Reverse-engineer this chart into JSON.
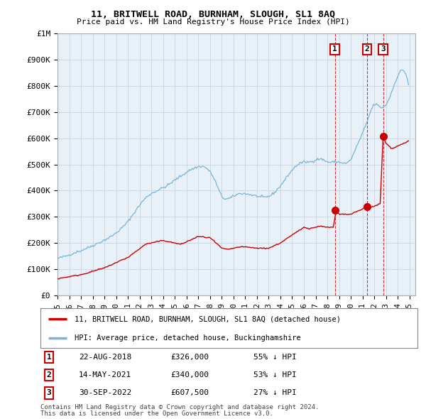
{
  "title": "11, BRITWELL ROAD, BURNHAM, SLOUGH, SL1 8AQ",
  "subtitle": "Price paid vs. HM Land Registry's House Price Index (HPI)",
  "address_label": "11, BRITWELL ROAD, BURNHAM, SLOUGH, SL1 8AQ (detached house)",
  "hpi_label": "HPI: Average price, detached house, Buckinghamshire",
  "footer1": "Contains HM Land Registry data © Crown copyright and database right 2024.",
  "footer2": "This data is licensed under the Open Government Licence v3.0.",
  "transactions": [
    {
      "num": 1,
      "date": "22-AUG-2018",
      "price": "£326,000",
      "pct": "55%",
      "y": 326000,
      "x_year": 2018.64
    },
    {
      "num": 2,
      "date": "14-MAY-2021",
      "price": "£340,000",
      "pct": "53%",
      "y": 340000,
      "x_year": 2021.37
    },
    {
      "num": 3,
      "date": "30-SEP-2022",
      "price": "£607,500",
      "pct": "27%",
      "y": 607500,
      "x_year": 2022.75
    }
  ],
  "hpi_color": "#7ab4d8",
  "price_color": "#cc0000",
  "background_color": "#e8f0f8",
  "grid_color": "#c8d4e0",
  "ylim": [
    0,
    1000000
  ],
  "xlim_start": 1995.0,
  "xlim_end": 2025.5
}
